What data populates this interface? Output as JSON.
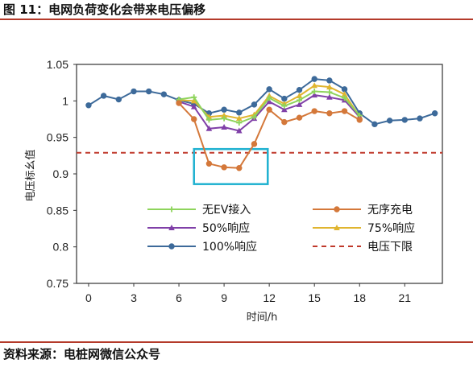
{
  "figure": {
    "title": "图 11：电网负荷变化会带来电压偏移",
    "source": "资料来源：电桩网微信公众号"
  },
  "chart_data": {
    "type": "line",
    "title": "",
    "xlabel": "时间/h",
    "ylabel": "电压标幺值",
    "xlim": [
      -0.8,
      23.5
    ],
    "ylim": [
      0.75,
      1.05
    ],
    "xticks": [
      0,
      3,
      6,
      9,
      12,
      15,
      18,
      21
    ],
    "yticks": [
      0.75,
      0.8,
      0.85,
      0.9,
      0.95,
      1,
      1.05
    ],
    "ytick_labels": [
      "0.75",
      "0.8",
      "0.85",
      "0.9",
      "0.95",
      "1",
      "1.05"
    ],
    "grid": false,
    "legend": "inside-bottom",
    "series": [
      {
        "name": "100%响应",
        "color": "#3d6a9a",
        "marker": "circle",
        "x": [
          0,
          1,
          2,
          3,
          4,
          5,
          6,
          7,
          8,
          9,
          10,
          11,
          12,
          13,
          14,
          15,
          16,
          17,
          18,
          19,
          20,
          21,
          22,
          23
        ],
        "y": [
          0.994,
          1.007,
          1.002,
          1.013,
          1.013,
          1.009,
          1.001,
          0.996,
          0.983,
          0.988,
          0.984,
          0.995,
          1.016,
          1.003,
          1.015,
          1.03,
          1.028,
          1.016,
          0.983,
          0.968,
          0.973,
          0.974,
          0.976,
          0.983
        ]
      },
      {
        "name": "75%响应",
        "color": "#e0b530",
        "marker": "triangle",
        "x": [
          6,
          7,
          8,
          9,
          10,
          11,
          12,
          13,
          14,
          15,
          16,
          17,
          18
        ],
        "y": [
          1.001,
          1.0,
          0.978,
          0.98,
          0.976,
          0.981,
          1.007,
          0.996,
          1.007,
          1.021,
          1.019,
          1.009,
          0.979
        ]
      },
      {
        "name": "50%响应",
        "color": "#8040a8",
        "marker": "triangle",
        "x": [
          6,
          7,
          8,
          9,
          10,
          11,
          12,
          13,
          14,
          15,
          16,
          17,
          18
        ],
        "y": [
          0.999,
          0.992,
          0.962,
          0.964,
          0.959,
          0.976,
          0.999,
          0.988,
          0.995,
          1.008,
          1.005,
          1.001,
          0.978
        ]
      },
      {
        "name": "无EV接入",
        "color": "#8ed45c",
        "marker": "cross",
        "x": [
          6,
          7,
          8,
          9,
          10,
          11,
          12,
          13,
          14,
          15,
          16,
          17,
          18
        ],
        "y": [
          1.002,
          1.005,
          0.974,
          0.976,
          0.97,
          0.978,
          1.004,
          0.993,
          1.001,
          1.013,
          1.012,
          1.004,
          0.98
        ]
      },
      {
        "name": "无序充电",
        "color": "#d4783a",
        "marker": "circle",
        "x": [
          6,
          7,
          8,
          9,
          10,
          11,
          12,
          13,
          14,
          15,
          16,
          17,
          18
        ],
        "y": [
          0.997,
          0.975,
          0.914,
          0.909,
          0.908,
          0.941,
          0.988,
          0.971,
          0.977,
          0.986,
          0.983,
          0.986,
          0.974
        ]
      }
    ],
    "limit_line": {
      "name": "电压下限",
      "y": 0.929,
      "color": "#c0392b",
      "style": "dashed"
    },
    "highlight_box": {
      "x": [
        7.0,
        11.9
      ],
      "y": [
        0.886,
        0.934
      ],
      "color": "#1fb1d0"
    },
    "legend_rows": [
      [
        "无EV接入",
        "无序充电"
      ],
      [
        "50%响应",
        "75%响应"
      ],
      [
        "100%响应",
        "电压下限"
      ]
    ]
  }
}
